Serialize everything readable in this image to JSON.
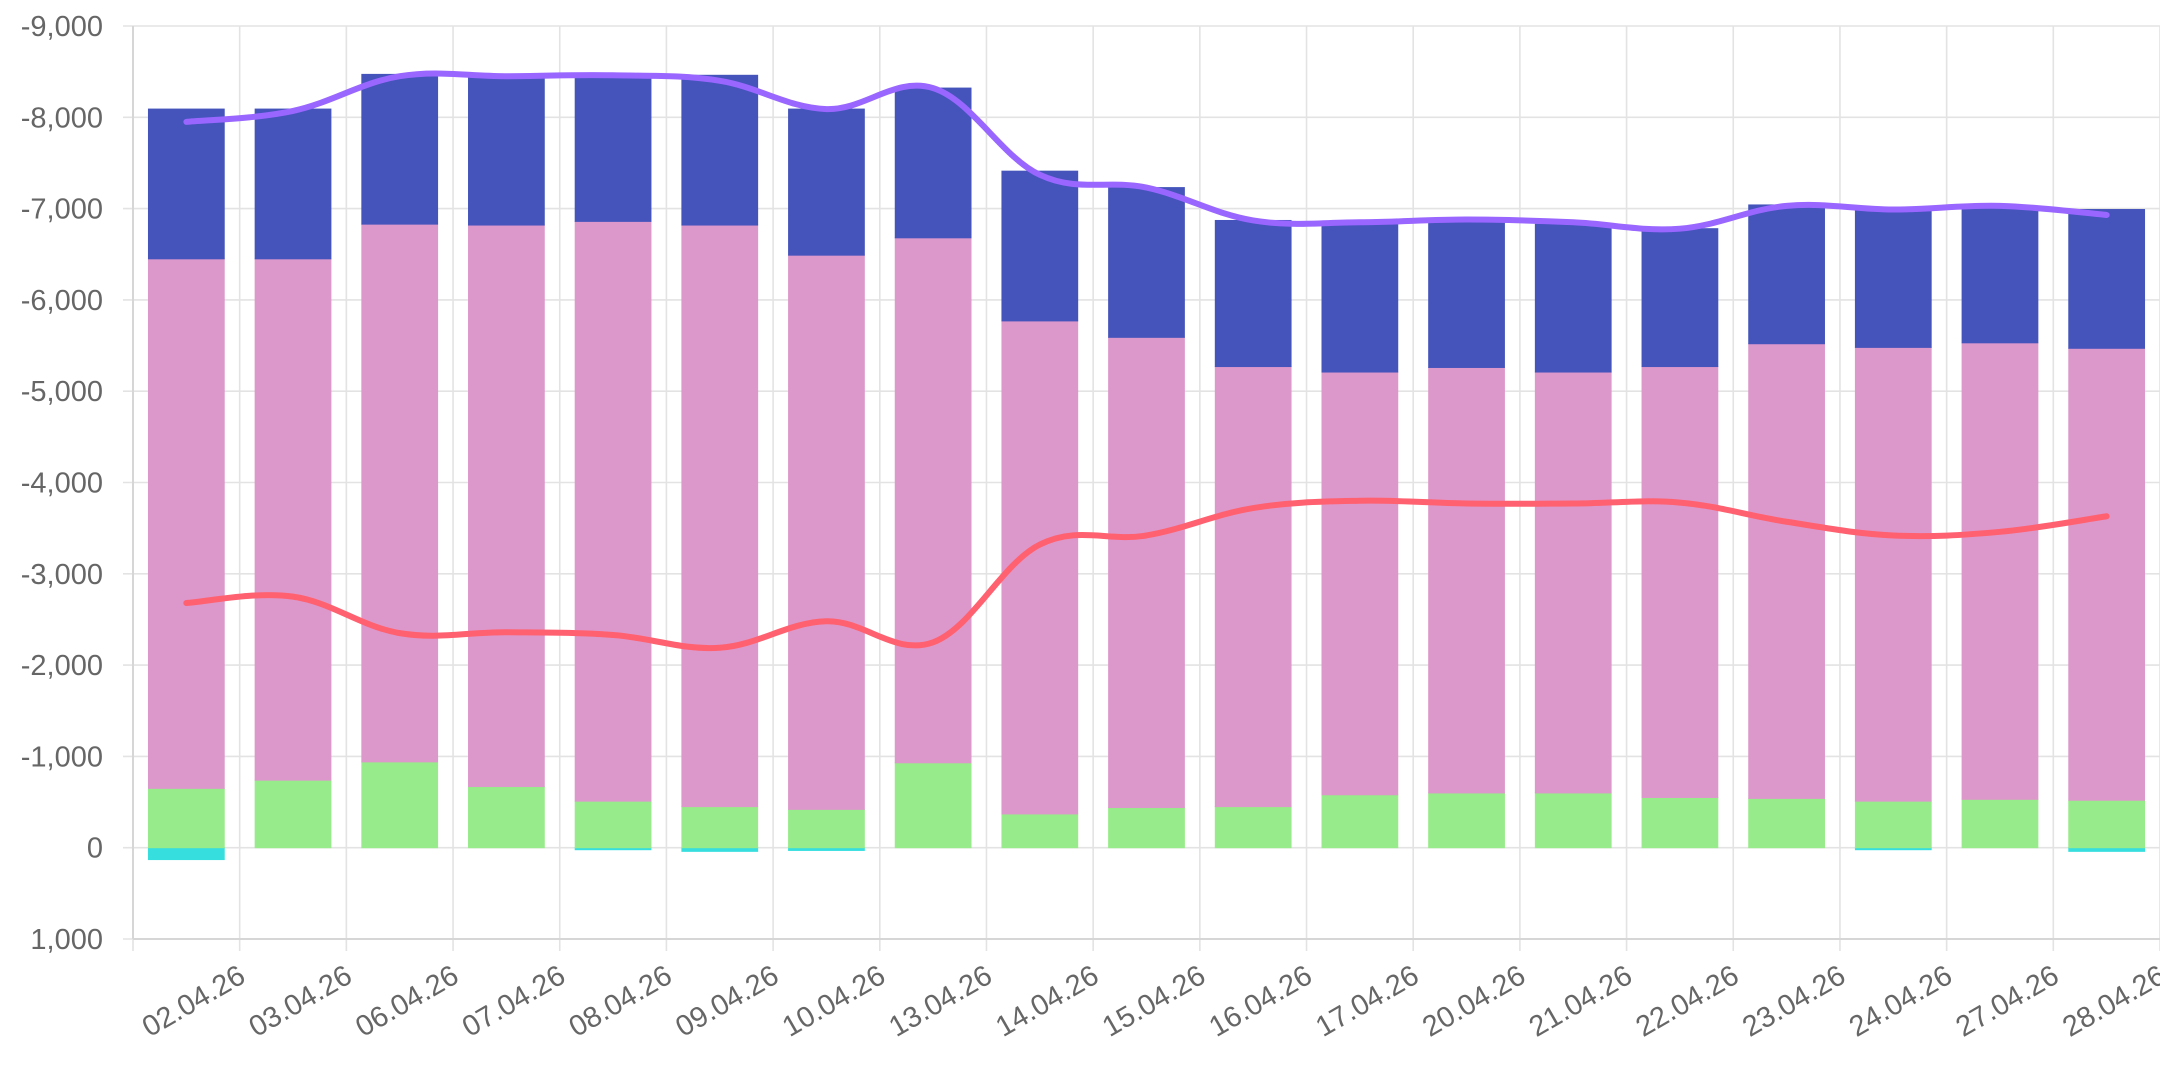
{
  "chart_data": {
    "type": "bar",
    "stacked": true,
    "categories": [
      "02.04.26",
      "03.04.26",
      "06.04.26",
      "07.04.26",
      "08.04.26",
      "09.04.26",
      "10.04.26",
      "13.04.26",
      "14.04.26",
      "15.04.26",
      "16.04.26",
      "17.04.26",
      "20.04.26",
      "21.04.26",
      "22.04.26",
      "23.04.26",
      "24.04.26",
      "27.04.26",
      "28.04.26"
    ],
    "ylim": [
      1000,
      -9000
    ],
    "yticks": [
      1000,
      0,
      -1000,
      -2000,
      -3000,
      -4000,
      -5000,
      -6000,
      -7000,
      -8000,
      -9000
    ],
    "ytick_labels": [
      "1,000",
      "0",
      "-1,000",
      "-2,000",
      "-3,000",
      "-4,000",
      "-5,000",
      "-6,000",
      "-7,000",
      "-8,000",
      "-9,000"
    ],
    "grid": true,
    "series": [
      {
        "name": "cyan",
        "type": "bar",
        "color": "#36dede",
        "values": [
          130,
          0,
          0,
          0,
          15,
          40,
          30,
          0,
          0,
          0,
          0,
          0,
          0,
          0,
          0,
          0,
          10,
          0,
          40
        ]
      },
      {
        "name": "green",
        "type": "bar",
        "color": "#98eb8a",
        "values": [
          -650,
          -740,
          -940,
          -670,
          -510,
          -450,
          -420,
          -930,
          -370,
          -440,
          -450,
          -580,
          -600,
          -600,
          -550,
          -540,
          -510,
          -530,
          -520
        ]
      },
      {
        "name": "pink",
        "type": "bar",
        "color": "#dd98cb",
        "values": [
          -5800,
          -5710,
          -5890,
          -6150,
          -6350,
          -6370,
          -6070,
          -5750,
          -5400,
          -5150,
          -4820,
          -4630,
          -4660,
          -4610,
          -4720,
          -4980,
          -4970,
          -5000,
          -4950
        ]
      },
      {
        "name": "blue",
        "type": "bar",
        "color": "#4454bb",
        "values": [
          -1640,
          -1640,
          -1640,
          -1630,
          -1600,
          -1640,
          -1600,
          -1640,
          -1640,
          -1640,
          -1600,
          -1640,
          -1610,
          -1620,
          -1510,
          -1520,
          -1520,
          -1470,
          -1520
        ]
      },
      {
        "name": "purple",
        "type": "line",
        "color": "#9966ff",
        "values": [
          -7950,
          -8070,
          -8450,
          -8450,
          -8460,
          -8400,
          -8090,
          -8320,
          -7370,
          -7230,
          -6870,
          -6850,
          -6880,
          -6850,
          -6780,
          -7030,
          -6990,
          -7030,
          -6930
        ]
      },
      {
        "name": "red",
        "type": "line",
        "color": "#ff6170",
        "values": [
          -2680,
          -2750,
          -2350,
          -2360,
          -2330,
          -2190,
          -2480,
          -2250,
          -3320,
          -3420,
          -3720,
          -3800,
          -3770,
          -3770,
          -3780,
          -3570,
          -3420,
          -3460,
          -3630
        ]
      }
    ]
  }
}
